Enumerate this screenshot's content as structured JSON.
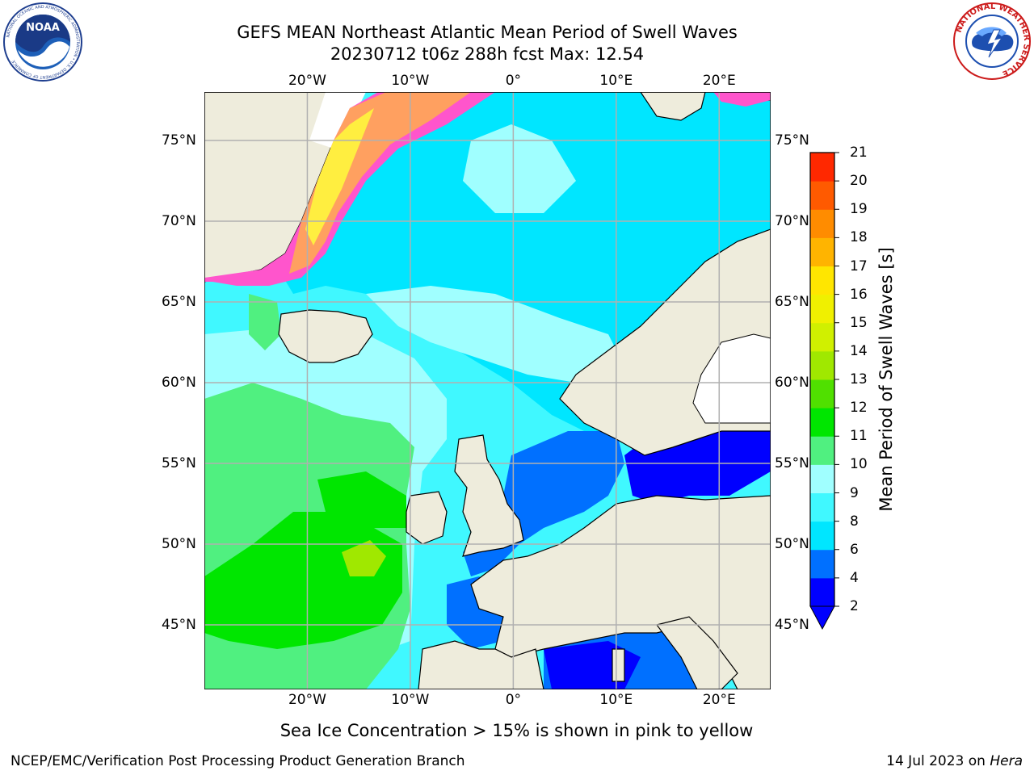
{
  "title": {
    "line1": "GEFS MEAN Northeast Atlantic Mean Period of Swell Waves",
    "line2": "20230712 t06z 288h fcst   Max: 12.54"
  },
  "logos": {
    "noaa": {
      "text": "NOAA",
      "ring_text": "NATIONAL OCEANIC AND ATMOSPHERIC ADMINISTRATION • U.S. DEPARTMENT OF COMMERCE"
    },
    "nws": {
      "ring_text": "NATIONAL WEATHER SERVICE"
    }
  },
  "map": {
    "projection": "lat-lon",
    "extent": {
      "lon_min": -30,
      "lon_max": 25,
      "lat_min": 41,
      "lat_max": 78
    },
    "grid_lines": true,
    "lon_ticks": [
      {
        "value": -20,
        "label": "20°W"
      },
      {
        "value": -10,
        "label": "10°W"
      },
      {
        "value": 0,
        "label": "0°"
      },
      {
        "value": 10,
        "label": "10°E"
      },
      {
        "value": 20,
        "label": "20°E"
      }
    ],
    "lat_ticks": [
      {
        "value": 75,
        "label": "75°N"
      },
      {
        "value": 70,
        "label": "70°N"
      },
      {
        "value": 65,
        "label": "65°N"
      },
      {
        "value": 60,
        "label": "60°N"
      },
      {
        "value": 55,
        "label": "55°N"
      },
      {
        "value": 50,
        "label": "50°N"
      },
      {
        "value": 45,
        "label": "45°N"
      }
    ],
    "colors": {
      "land": "#eeecdc",
      "grid": "#b0b0b0",
      "coast": "#000000",
      "ice_pink": "#ff55cc",
      "ice_orange": "#ffa060",
      "ice_yellow": "#ffee40"
    }
  },
  "colorbar": {
    "label": "Mean Period of Swell Waves [s]",
    "levels": [
      2,
      4,
      6,
      8,
      9,
      10,
      11,
      12,
      13,
      14,
      15,
      16,
      17,
      18,
      19,
      20,
      21
    ],
    "colors": [
      "#0000ff",
      "#0070ff",
      "#00e6ff",
      "#40f8ff",
      "#a0ffff",
      "#50f080",
      "#00e600",
      "#50e000",
      "#a0e800",
      "#d0f000",
      "#f0f000",
      "#ffe600",
      "#ffb400",
      "#ff8c00",
      "#ff5a00",
      "#ff2800"
    ],
    "extend_min_color": "#0000ff"
  },
  "footer": {
    "ice_note": "Sea Ice Concentration > 15% is shown in pink to yellow",
    "credit": "NCEP/EMC/Verification Post Processing Product Generation Branch",
    "date": "14 Jul 2023 on",
    "host": "Hera"
  }
}
